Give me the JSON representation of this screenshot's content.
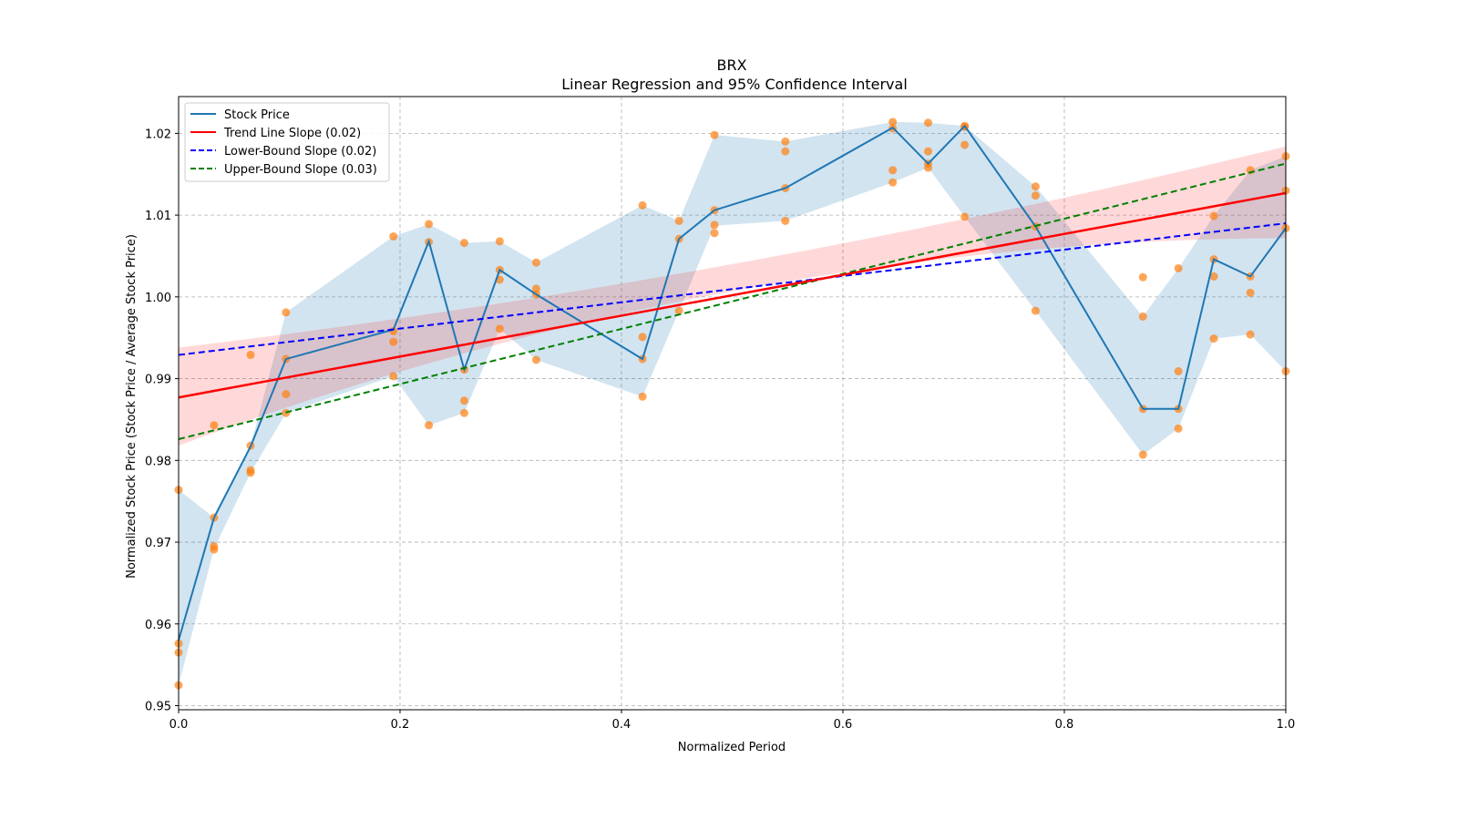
{
  "chart_data": {
    "type": "line",
    "title": "BRX",
    "subtitle": "Linear Regression and 95% Confidence Interval",
    "xlabel": "Normalized Period",
    "ylabel": "Normalized Stock Price (Stock Price / Average Stock Price)",
    "xlim": [
      0.0,
      1.0
    ],
    "ylim": [
      0.9495,
      1.0245
    ],
    "xticks": [
      0.0,
      0.2,
      0.4,
      0.6,
      0.8,
      1.0
    ],
    "xtick_labels": [
      "0.0",
      "0.2",
      "0.4",
      "0.6",
      "0.8",
      "1.0"
    ],
    "yticks": [
      0.95,
      0.96,
      0.97,
      0.98,
      0.99,
      1.0,
      1.01,
      1.02
    ],
    "ytick_labels": [
      "0.95",
      "0.96",
      "0.97",
      "0.98",
      "0.99",
      "1.00",
      "1.01",
      "1.02"
    ],
    "grid": true,
    "legend_position": "top-left",
    "legend": [
      {
        "label": "Stock Price",
        "color": "#1f77b4",
        "style": "solid"
      },
      {
        "label": "Trend Line Slope (0.02)",
        "color": "#ff0000",
        "style": "solid"
      },
      {
        "label": "Lower-Bound Slope (0.02)",
        "color": "#0000ff",
        "style": "dashed"
      },
      {
        "label": "Upper-Bound Slope (0.03)",
        "color": "#008000",
        "style": "dashed"
      }
    ],
    "series": [
      {
        "name": "Stock Price",
        "color": "#1f77b4",
        "x": [
          0.0,
          0.032,
          0.065,
          0.097,
          0.194,
          0.226,
          0.258,
          0.29,
          0.323,
          0.419,
          0.452,
          0.484,
          0.548,
          0.645,
          0.677,
          0.71,
          0.774,
          0.871,
          0.903,
          0.935,
          0.968,
          1.0
        ],
        "y": [
          0.958,
          0.973,
          0.9817,
          0.9924,
          0.996,
          1.0068,
          0.9911,
          1.0033,
          1.0003,
          0.9924,
          1.0071,
          1.0106,
          1.0133,
          1.0207,
          1.0163,
          1.0209,
          1.0086,
          0.9863,
          0.9863,
          1.0046,
          1.0025,
          1.0084
        ]
      }
    ],
    "stock_band": {
      "color": "#1f77b4",
      "opacity": 0.2,
      "x": [
        0.0,
        0.032,
        0.065,
        0.097,
        0.194,
        0.226,
        0.258,
        0.29,
        0.323,
        0.419,
        0.452,
        0.484,
        0.548,
        0.645,
        0.677,
        0.71,
        0.774,
        0.871,
        0.903,
        0.935,
        0.968,
        1.0
      ],
      "lower": [
        0.9525,
        0.9692,
        0.9785,
        0.9858,
        0.9903,
        0.9843,
        0.9858,
        0.9961,
        0.9923,
        0.9878,
        0.9983,
        1.0087,
        1.0093,
        1.014,
        1.0158,
        1.0098,
        0.9983,
        0.9807,
        0.9839,
        0.9949,
        0.9954,
        0.9909
      ],
      "upper": [
        0.9764,
        0.973,
        0.9818,
        0.9981,
        1.0074,
        1.0089,
        1.0066,
        1.0068,
        1.0042,
        1.0112,
        1.0093,
        1.0198,
        1.019,
        1.0214,
        1.0213,
        1.0209,
        1.0135,
        0.9976,
        1.0035,
        1.0099,
        1.0155,
        1.0172
      ]
    },
    "scatter": {
      "color": "#ff7f0e",
      "opacity": 0.7,
      "points": [
        [
          0.0,
          0.9764
        ],
        [
          0.0,
          0.9576
        ],
        [
          0.0,
          0.9565
        ],
        [
          0.0,
          0.9525
        ],
        [
          0.032,
          0.973
        ],
        [
          0.032,
          0.9695
        ],
        [
          0.032,
          0.9691
        ],
        [
          0.032,
          0.9843
        ],
        [
          0.065,
          0.9818
        ],
        [
          0.065,
          0.9788
        ],
        [
          0.065,
          0.9785
        ],
        [
          0.065,
          0.9929
        ],
        [
          0.097,
          0.9981
        ],
        [
          0.097,
          0.9924
        ],
        [
          0.097,
          0.9881
        ],
        [
          0.097,
          0.9858
        ],
        [
          0.194,
          1.0074
        ],
        [
          0.194,
          0.9958
        ],
        [
          0.194,
          0.9945
        ],
        [
          0.194,
          0.9903
        ],
        [
          0.226,
          1.0089
        ],
        [
          0.226,
          1.0067
        ],
        [
          0.226,
          0.9843
        ],
        [
          0.258,
          1.0066
        ],
        [
          0.258,
          0.9911
        ],
        [
          0.258,
          0.9873
        ],
        [
          0.258,
          0.9858
        ],
        [
          0.29,
          1.0068
        ],
        [
          0.29,
          1.0033
        ],
        [
          0.29,
          1.0021
        ],
        [
          0.29,
          0.9961
        ],
        [
          0.323,
          1.0042
        ],
        [
          0.323,
          1.001
        ],
        [
          0.323,
          1.0003
        ],
        [
          0.323,
          0.9923
        ],
        [
          0.419,
          1.0112
        ],
        [
          0.419,
          0.9951
        ],
        [
          0.419,
          0.9924
        ],
        [
          0.419,
          0.9878
        ],
        [
          0.452,
          1.0093
        ],
        [
          0.452,
          1.0071
        ],
        [
          0.452,
          0.9983
        ],
        [
          0.484,
          1.0198
        ],
        [
          0.484,
          1.0106
        ],
        [
          0.484,
          1.0088
        ],
        [
          0.484,
          1.0078
        ],
        [
          0.548,
          1.019
        ],
        [
          0.548,
          1.0178
        ],
        [
          0.548,
          1.0133
        ],
        [
          0.548,
          1.0093
        ],
        [
          0.645,
          1.0214
        ],
        [
          0.645,
          1.0206
        ],
        [
          0.645,
          1.0155
        ],
        [
          0.645,
          1.014
        ],
        [
          0.677,
          1.0213
        ],
        [
          0.677,
          1.0178
        ],
        [
          0.677,
          1.0163
        ],
        [
          0.677,
          1.0158
        ],
        [
          0.71,
          1.0209
        ],
        [
          0.71,
          1.0208
        ],
        [
          0.71,
          1.0186
        ],
        [
          0.71,
          1.0098
        ],
        [
          0.774,
          1.0135
        ],
        [
          0.774,
          1.0124
        ],
        [
          0.774,
          1.0086
        ],
        [
          0.774,
          0.9983
        ],
        [
          0.871,
          1.0024
        ],
        [
          0.871,
          0.9976
        ],
        [
          0.871,
          0.9863
        ],
        [
          0.871,
          0.9807
        ],
        [
          0.903,
          1.0035
        ],
        [
          0.903,
          0.9909
        ],
        [
          0.903,
          0.9863
        ],
        [
          0.903,
          0.9839
        ],
        [
          0.935,
          1.0099
        ],
        [
          0.935,
          1.0046
        ],
        [
          0.935,
          1.0025
        ],
        [
          0.935,
          0.9949
        ],
        [
          0.968,
          1.0155
        ],
        [
          0.968,
          1.0025
        ],
        [
          0.968,
          1.0005
        ],
        [
          0.968,
          0.9954
        ],
        [
          1.0,
          1.0172
        ],
        [
          1.0,
          1.013
        ],
        [
          1.0,
          1.0084
        ],
        [
          1.0,
          0.9909
        ]
      ]
    },
    "regression": {
      "trend": {
        "color": "#ff0000",
        "y_at_0": 0.9877,
        "y_at_1": 1.0127
      },
      "lower_bound": {
        "color": "#0000ff",
        "y_at_0": 0.9929,
        "y_at_1": 1.009
      },
      "upper_bound": {
        "color": "#008000",
        "y_at_0": 0.9826,
        "y_at_1": 1.0163
      },
      "ci_band": {
        "color": "#ff0000",
        "opacity": 0.15,
        "lower_at_0": 0.9818,
        "upper_at_0": 0.9938,
        "lower_at_mid": 1.0007,
        "upper_at_mid": 1.004,
        "lower_at_1": 1.0072,
        "upper_at_1": 1.0184
      }
    }
  }
}
